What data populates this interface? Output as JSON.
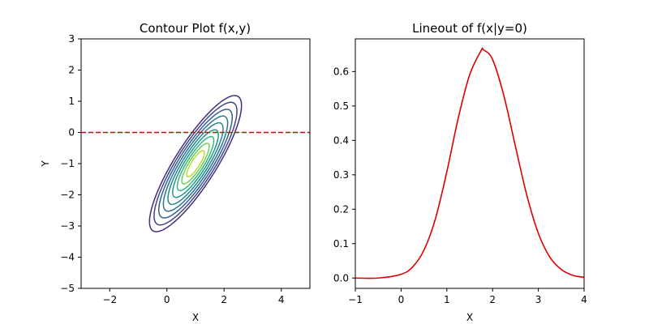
{
  "chart_data": [
    {
      "type": "contour",
      "title": "Contour Plot f(x,y)",
      "xlabel": "X",
      "ylabel": "Y",
      "xlim": [
        -3,
        5
      ],
      "ylim": [
        -5,
        3
      ],
      "xticks": [
        -2,
        0,
        2,
        4
      ],
      "yticks": [
        3,
        2,
        1,
        0,
        -1,
        -2,
        -3,
        -4,
        -5
      ],
      "xtick_labels": [
        "−2",
        "0",
        "2",
        "4"
      ],
      "ytick_labels": [
        "3",
        "2",
        "1",
        "0",
        "−1",
        "−2",
        "−3",
        "−4",
        "−5"
      ],
      "center": [
        1.0,
        -1.0
      ],
      "major_axis_angle_deg": 55,
      "contours": [
        {
          "semi_major": 2.62,
          "semi_minor": 0.7,
          "color": "#472c7a"
        },
        {
          "semi_major": 2.36,
          "semi_minor": 0.63,
          "color": "#3f4788"
        },
        {
          "semi_major": 2.09,
          "semi_minor": 0.56,
          "color": "#355f8d"
        },
        {
          "semi_major": 1.83,
          "semi_minor": 0.49,
          "color": "#2c728e"
        },
        {
          "semi_major": 1.57,
          "semi_minor": 0.42,
          "color": "#24868e"
        },
        {
          "semi_major": 1.3,
          "semi_minor": 0.35,
          "color": "#1f988b"
        },
        {
          "semi_major": 1.04,
          "semi_minor": 0.28,
          "color": "#35b779"
        },
        {
          "semi_major": 0.78,
          "semi_minor": 0.21,
          "color": "#6ccd5a"
        },
        {
          "semi_major": 0.5,
          "semi_minor": 0.14,
          "color": "#b5de2b"
        }
      ],
      "reference_line": {
        "y": 0,
        "color": "#dd0000",
        "style": "dashed"
      },
      "grid": false
    },
    {
      "type": "line",
      "title": "Lineout of f(x|y=0)",
      "xlabel": "X",
      "ylabel": "",
      "xlim": [
        -1,
        4
      ],
      "ylim": [
        -0.03,
        0.695
      ],
      "xticks": [
        -1,
        0,
        1,
        2,
        3,
        4
      ],
      "yticks": [
        0.0,
        0.1,
        0.2,
        0.3,
        0.4,
        0.5,
        0.6
      ],
      "xtick_labels": [
        "−1",
        "0",
        "1",
        "2",
        "3",
        "4"
      ],
      "ytick_labels": [
        "0.0",
        "0.1",
        "0.2",
        "0.3",
        "0.4",
        "0.5",
        "0.6"
      ],
      "series": [
        {
          "color": "#dd0000",
          "x": [
            -1.0,
            -0.5,
            0.0,
            0.25,
            0.5,
            0.75,
            1.0,
            1.25,
            1.5,
            1.75,
            1.8,
            2.0,
            2.25,
            2.5,
            2.75,
            3.0,
            3.25,
            3.5,
            3.75,
            4.0
          ],
          "y": [
            0.0,
            0.0,
            0.011,
            0.032,
            0.081,
            0.172,
            0.309,
            0.465,
            0.591,
            0.661,
            0.663,
            0.635,
            0.528,
            0.382,
            0.24,
            0.13,
            0.061,
            0.025,
            0.008,
            0.002
          ]
        }
      ],
      "grid": false
    }
  ]
}
